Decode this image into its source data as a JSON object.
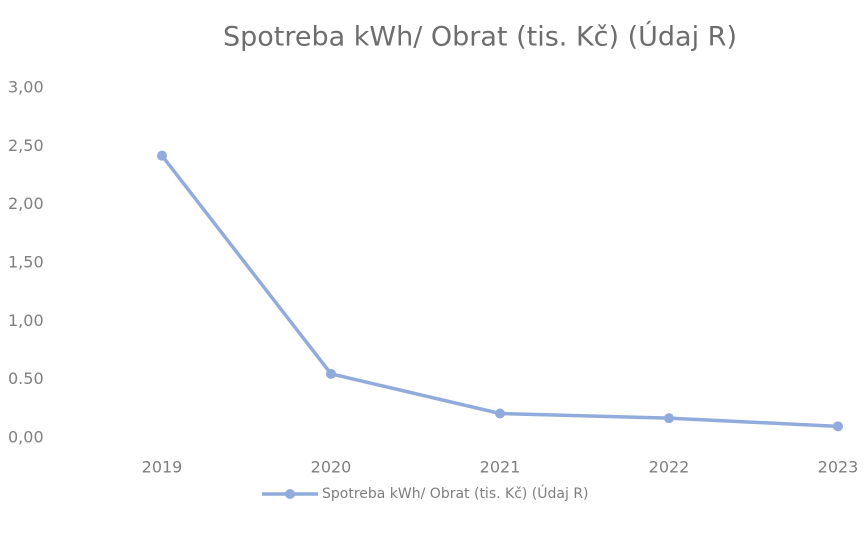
{
  "chart_data": {
    "type": "line",
    "title": "Spotreba kWh/ Obrat (tis. Kč) (Údaj R)",
    "categories": [
      "2019",
      "2020",
      "2021",
      "2022",
      "2023"
    ],
    "series": [
      {
        "name": "Spotreba kWh/ Obrat (tis. Kč) (Údaj R)",
        "color": "#91acdc",
        "values": [
          2.42,
          0.55,
          0.21,
          0.17,
          0.1
        ]
      }
    ],
    "ylim": [
      0,
      3
    ],
    "yticks": [
      {
        "value": 0,
        "label": "0,00"
      },
      {
        "value": 0.5,
        "label": "0.50"
      },
      {
        "value": 1,
        "label": "1,00"
      },
      {
        "value": 1.5,
        "label": "1,50"
      },
      {
        "value": 2,
        "label": "2,00"
      },
      {
        "value": 2.5,
        "label": "2,50"
      },
      {
        "value": 3,
        "label": "3,00"
      }
    ],
    "grid": false,
    "legend": "bottom"
  }
}
